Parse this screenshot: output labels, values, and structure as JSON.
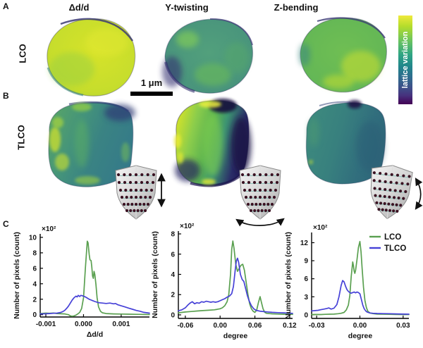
{
  "figure": {
    "panel_labels": {
      "a": "A",
      "b": "B",
      "c": "C"
    },
    "column_titles": [
      "Δd/d",
      "Y-twisting",
      "Z-bending"
    ],
    "row_labels": [
      "LCO",
      "TLCO"
    ],
    "scale_bar_label": "1 μm",
    "colorbar_label": "lattice variation",
    "colors": {
      "lco_line": "#5aa050",
      "tlco_line": "#4641d7",
      "viridis_top": "#efe93c",
      "viridis_bottom": "#440154"
    },
    "icons": {
      "insets": [
        "crystal-lattice-y-stretch-arrow-icon",
        "crystal-lattice-twist-arrow-icon",
        "crystal-lattice-bend-arrow-icon"
      ]
    }
  },
  "chart_data": [
    {
      "type": "line",
      "title": "",
      "xlabel": "Δd/d",
      "ylabel": "Number of pixels (count)",
      "exponent": "×10²",
      "xlim": [
        -0.00115,
        0.00175
      ],
      "ylim": [
        -0.3,
        10.45
      ],
      "grid": false,
      "xticks": [
        {
          "v": -0.001,
          "label": "-0.001"
        },
        {
          "v": 0.0,
          "label": "0.000"
        },
        {
          "v": 0.001,
          "label": "0.001"
        }
      ],
      "yticks": [
        {
          "v": 0,
          "label": "0"
        },
        {
          "v": 2,
          "label": "2"
        },
        {
          "v": 4,
          "label": "4"
        },
        {
          "v": 6,
          "label": "6"
        },
        {
          "v": 8,
          "label": "8"
        },
        {
          "v": 10,
          "label": "10"
        }
      ],
      "legend_position": "none",
      "series": [
        {
          "name": "LCO",
          "color": "#5aa050",
          "x": [
            -0.00115,
            -0.001,
            -0.0009,
            -0.0008,
            -0.0007,
            -0.0006,
            -0.0005,
            -0.00045,
            -0.0004,
            -0.00035,
            -0.0003,
            -0.00025,
            -0.0002,
            -0.00015,
            -0.0001,
            -5e-05,
            0,
            5e-05,
            0.0001,
            0.00012,
            0.00015,
            0.00017,
            0.0002,
            0.00022,
            0.00024,
            0.00026,
            0.00028,
            0.0003,
            0.00033,
            0.00036,
            0.0004,
            0.00045,
            0.0005,
            0.0006,
            0.0007,
            0.0008,
            0.001,
            0.0012,
            0.0014,
            0.0016,
            0.00175
          ],
          "y": [
            0.15,
            0.2,
            0.18,
            0.22,
            0.15,
            0.12,
            0.1,
            0.05,
            0,
            -0.15,
            -0.2,
            -0.15,
            -0.05,
            0.1,
            0.3,
            0.8,
            2.2,
            6.0,
            9.5,
            9.3,
            7.8,
            7.1,
            7.0,
            6.2,
            5.0,
            4.7,
            5.6,
            5.2,
            3.9,
            2.2,
            1.0,
            0.45,
            0.25,
            0.15,
            0.12,
            0.1,
            0.08,
            0.06,
            0.05,
            0.03,
            0.02
          ]
        },
        {
          "name": "TLCO",
          "color": "#4641d7",
          "x": [
            -0.00115,
            -0.001,
            -0.0009,
            -0.0008,
            -0.0007,
            -0.0006,
            -0.00055,
            -0.0005,
            -0.00045,
            -0.0004,
            -0.00035,
            -0.0003,
            -0.00025,
            -0.0002,
            -0.00017,
            -0.00014,
            -0.0001,
            -7e-05,
            -3e-05,
            0,
            5e-05,
            0.0001,
            0.00015,
            0.0002,
            0.00025,
            0.0003,
            0.0004,
            0.0005,
            0.0006,
            0.0007,
            0.0008,
            0.00085,
            0.0009,
            0.001,
            0.0011,
            0.0012,
            0.0013,
            0.0014,
            0.0015,
            0.0016,
            0.00175
          ],
          "y": [
            0.1,
            0.12,
            0.15,
            0.18,
            0.2,
            0.3,
            0.4,
            0.55,
            0.8,
            1.1,
            1.5,
            1.9,
            2.2,
            2.4,
            2.3,
            2.5,
            2.35,
            2.5,
            2.45,
            2.4,
            2.3,
            2.15,
            2.0,
            1.9,
            1.8,
            1.7,
            1.55,
            1.5,
            1.45,
            1.5,
            1.4,
            1.45,
            1.3,
            1.15,
            1.0,
            0.85,
            0.7,
            0.55,
            0.45,
            0.3,
            0.2
          ]
        }
      ]
    },
    {
      "type": "line",
      "title": "",
      "xlabel": "degree",
      "ylabel": "Number of pixels (count)",
      "exponent": "×10²",
      "xlim": [
        -0.072,
        0.125
      ],
      "ylim": [
        -0.35,
        8.28
      ],
      "grid": false,
      "xticks": [
        {
          "v": -0.06,
          "label": "-0.06"
        },
        {
          "v": 0.0,
          "label": "0.00"
        },
        {
          "v": 0.06,
          "label": "0.06"
        },
        {
          "v": 0.12,
          "label": "0.12"
        }
      ],
      "yticks": [
        {
          "v": 0,
          "label": "0"
        },
        {
          "v": 2,
          "label": "2"
        },
        {
          "v": 4,
          "label": "4"
        },
        {
          "v": 6,
          "label": "6"
        },
        {
          "v": 8,
          "label": "8"
        }
      ],
      "legend_position": "none",
      "series": [
        {
          "name": "LCO",
          "color": "#5aa050",
          "x": [
            -0.072,
            -0.065,
            -0.06,
            -0.05,
            -0.04,
            -0.03,
            -0.02,
            -0.01,
            -0.005,
            0,
            0.004,
            0.008,
            0.012,
            0.015,
            0.018,
            0.02,
            0.022,
            0.024,
            0.027,
            0.03,
            0.033,
            0.036,
            0.039,
            0.042,
            0.045,
            0.048,
            0.051,
            0.054,
            0.057,
            0.06,
            0.063,
            0.066,
            0.069,
            0.071,
            0.074,
            0.077,
            0.08,
            0.09,
            0.1,
            0.11,
            0.125
          ],
          "y": [
            0.2,
            0.25,
            0.28,
            0.33,
            0.38,
            0.42,
            0.46,
            0.5,
            0.55,
            0.6,
            0.7,
            0.9,
            1.3,
            2.0,
            4.0,
            6.5,
            7.3,
            6.6,
            5.0,
            4.3,
            4.6,
            4.9,
            5.0,
            4.4,
            3.2,
            2.0,
            1.1,
            0.6,
            0.35,
            0.25,
            0.45,
            1.2,
            1.8,
            1.3,
            0.6,
            0.25,
            0.15,
            0.1,
            0.08,
            0.06,
            0.05
          ]
        },
        {
          "name": "TLCO",
          "color": "#4641d7",
          "x": [
            -0.072,
            -0.066,
            -0.06,
            -0.056,
            -0.052,
            -0.048,
            -0.044,
            -0.04,
            -0.036,
            -0.032,
            -0.028,
            -0.024,
            -0.02,
            -0.016,
            -0.012,
            -0.008,
            -0.004,
            0,
            0.004,
            0.008,
            0.012,
            0.016,
            0.02,
            0.023,
            0.026,
            0.028,
            0.03,
            0.032,
            0.035,
            0.038,
            0.041,
            0.044,
            0.047,
            0.05,
            0.054,
            0.058,
            0.062,
            0.07,
            0.08,
            0.09,
            0.1,
            0.11,
            0.125
          ],
          "y": [
            0.4,
            0.5,
            0.7,
            0.95,
            1.15,
            1.3,
            1.1,
            1.2,
            1.15,
            1.3,
            1.25,
            1.35,
            1.3,
            1.25,
            1.3,
            1.25,
            1.3,
            1.4,
            1.5,
            1.6,
            1.75,
            1.85,
            2.1,
            2.8,
            4.4,
            5.3,
            5.6,
            5.2,
            4.0,
            3.5,
            3.3,
            2.6,
            1.9,
            1.4,
            0.9,
            0.6,
            0.45,
            0.35,
            0.3,
            0.25,
            0.22,
            0.2,
            0.15
          ]
        }
      ]
    },
    {
      "type": "line",
      "title": "",
      "xlabel": "degree",
      "ylabel": "Number of pixels (count)",
      "exponent": "×10²",
      "xlim": [
        -0.0335,
        0.034
      ],
      "ylim": [
        -0.6,
        13.7
      ],
      "grid": false,
      "xticks": [
        {
          "v": -0.03,
          "label": "-0.03"
        },
        {
          "v": 0.0,
          "label": "0.00"
        },
        {
          "v": 0.03,
          "label": "0.03"
        }
      ],
      "yticks": [
        {
          "v": 0,
          "label": "0"
        },
        {
          "v": 3,
          "label": "3"
        },
        {
          "v": 6,
          "label": "6"
        },
        {
          "v": 9,
          "label": "9"
        },
        {
          "v": 12,
          "label": "12"
        }
      ],
      "legend_position": "top-right",
      "series": [
        {
          "name": "LCO",
          "color": "#5aa050",
          "x": [
            -0.0335,
            -0.03,
            -0.027,
            -0.024,
            -0.021,
            -0.018,
            -0.015,
            -0.013,
            -0.011,
            -0.0095,
            -0.008,
            -0.007,
            -0.006,
            -0.005,
            -0.0045,
            -0.004,
            -0.0035,
            -0.003,
            -0.002,
            -0.001,
            0,
            0.0008,
            0.0015,
            0.0025,
            0.0035,
            0.0045,
            0.0055,
            0.007,
            0.009,
            0.012,
            0.016,
            0.02,
            0.025,
            0.03,
            0.034
          ],
          "y": [
            0.05,
            0.06,
            0.05,
            0.08,
            0.1,
            0.12,
            0.18,
            0.25,
            0.4,
            0.8,
            1.6,
            3.2,
            6.4,
            8.8,
            8.2,
            7.3,
            6.9,
            7.4,
            9.2,
            11.2,
            12.2,
            10.5,
            7.8,
            4.6,
            2.4,
            1.2,
            0.6,
            0.3,
            0.2,
            0.12,
            0.1,
            0.08,
            0.06,
            0.05,
            0.04
          ]
        },
        {
          "name": "TLCO",
          "color": "#4641d7",
          "x": [
            -0.0335,
            -0.031,
            -0.029,
            -0.027,
            -0.025,
            -0.023,
            -0.0215,
            -0.02,
            -0.018,
            -0.016,
            -0.0145,
            -0.013,
            -0.012,
            -0.011,
            -0.01,
            -0.009,
            -0.008,
            -0.007,
            -0.006,
            -0.005,
            -0.004,
            -0.003,
            -0.002,
            -0.001,
            0,
            0.001,
            0.002,
            0.003,
            0.004,
            0.005,
            0.007,
            0.009,
            0.012,
            0.016,
            0.02,
            0.025,
            0.03,
            0.034
          ],
          "y": [
            0.65,
            0.7,
            0.75,
            0.85,
            0.95,
            1.05,
            1.15,
            0.95,
            1.1,
            1.7,
            3.0,
            4.9,
            5.7,
            5.5,
            4.8,
            4.2,
            3.9,
            3.7,
            3.6,
            3.7,
            3.8,
            3.65,
            3.8,
            3.7,
            3.5,
            2.6,
            1.6,
            1.0,
            0.65,
            0.45,
            0.3,
            0.25,
            0.22,
            0.2,
            0.18,
            0.15,
            0.12,
            0.1
          ]
        }
      ]
    }
  ]
}
